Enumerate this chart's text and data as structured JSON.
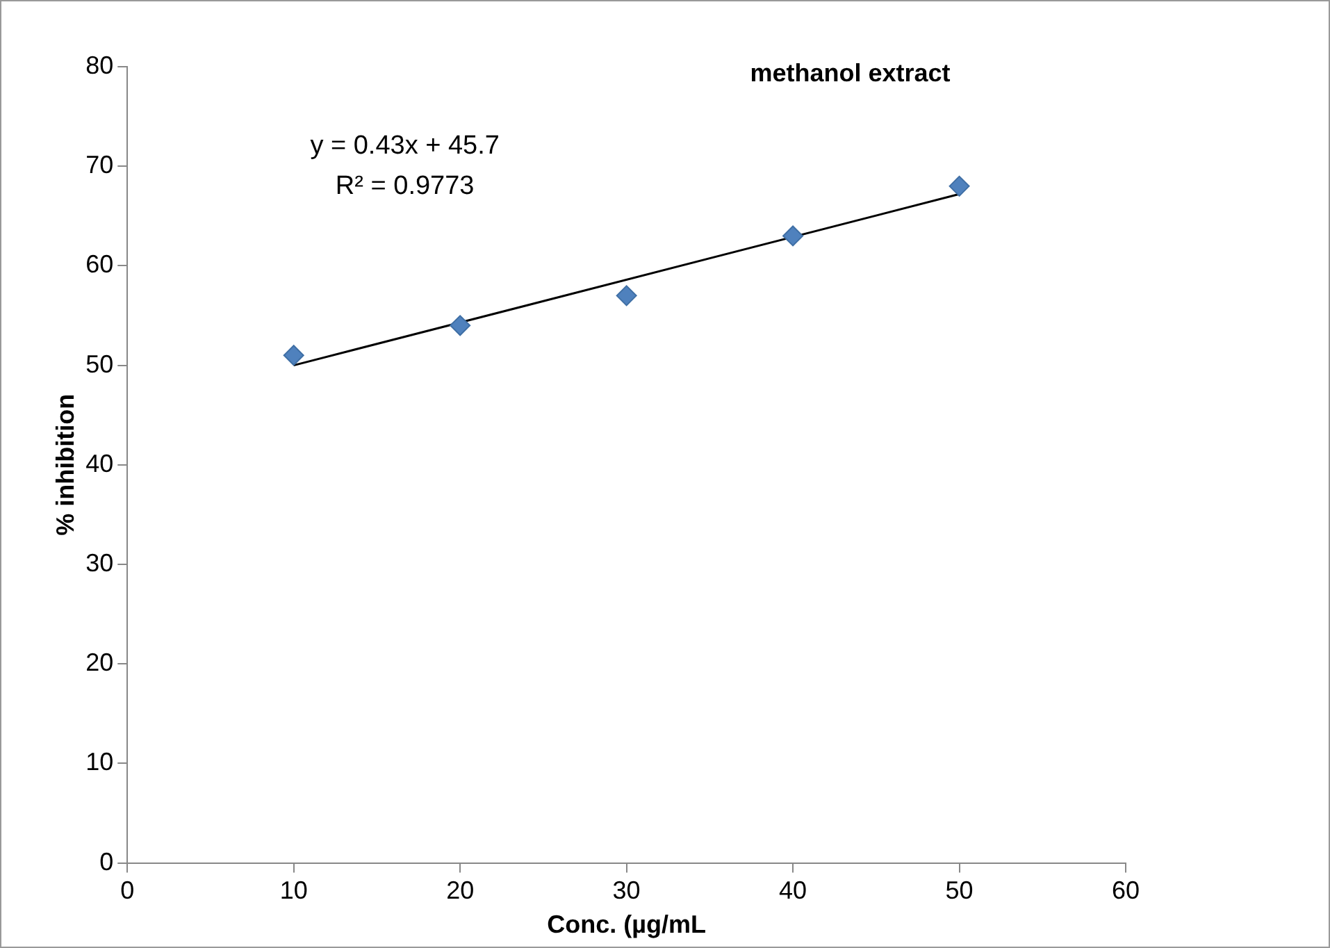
{
  "chart_data": {
    "type": "scatter",
    "title": "methanol extract",
    "xlabel": "Conc. (µg/mL",
    "ylabel": "% inhibition",
    "annotations": [
      "y = 0.43x + 45.7",
      "R² = 0.9773"
    ],
    "x": [
      10,
      20,
      30,
      40,
      50
    ],
    "series": [
      {
        "type": "scatter",
        "color": "#4f81bd",
        "values": [
          51,
          54,
          57,
          63,
          68
        ]
      },
      {
        "type": "line",
        "color": "#000000",
        "x": [
          10,
          50
        ],
        "values": [
          50,
          67.2
        ],
        "marker": "none"
      }
    ],
    "xlim": [
      0,
      60
    ],
    "xticks": [
      0,
      10,
      20,
      30,
      40,
      50,
      60
    ],
    "ylim": [
      0,
      80
    ],
    "yticks": [
      0,
      10,
      20,
      30,
      40,
      50,
      60,
      70,
      80
    ],
    "grid": false,
    "legend": false,
    "marker": "diamond"
  }
}
